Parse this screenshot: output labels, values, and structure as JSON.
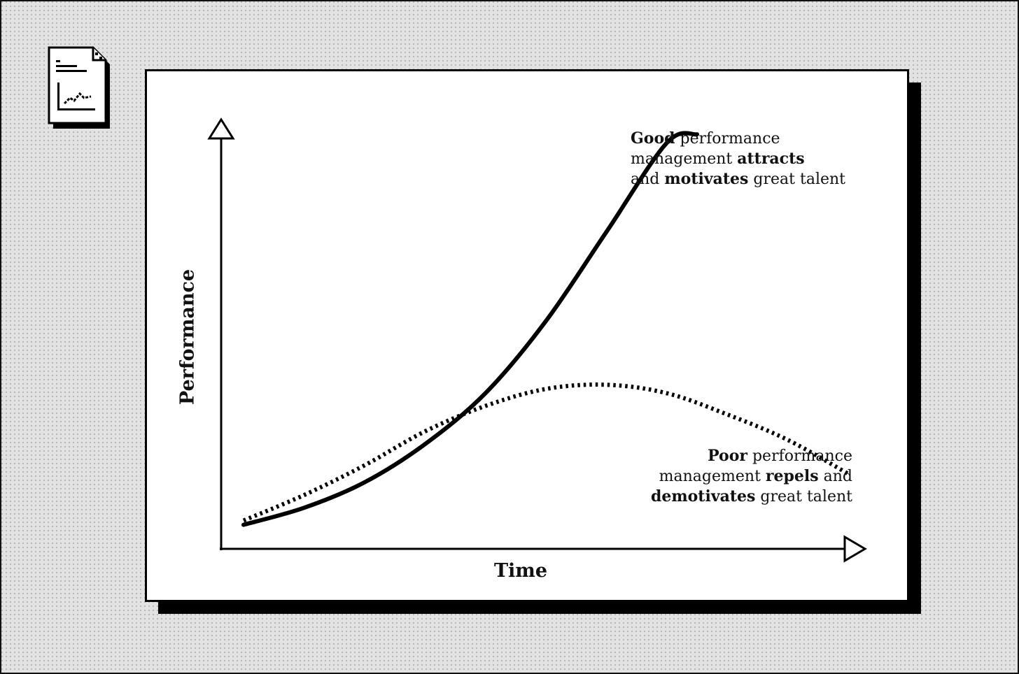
{
  "chart_data": {
    "type": "line",
    "xlabel": "Time",
    "ylabel": "Performance",
    "xlim": [
      0,
      100
    ],
    "ylim": [
      0,
      100
    ],
    "grid": false,
    "ticks": false,
    "series": [
      {
        "key": "good",
        "style": "solid",
        "color": "#000000",
        "x": [
          0,
          10,
          20,
          30,
          40,
          50,
          60,
          70,
          75
        ],
        "y": [
          6,
          10,
          16,
          25,
          37,
          54,
          75,
          96,
          98
        ]
      },
      {
        "key": "poor",
        "style": "dotted",
        "color": "#000000",
        "x": [
          0,
          10,
          20,
          30,
          40,
          50,
          60,
          70,
          80,
          90,
          100
        ],
        "y": [
          7,
          13,
          20,
          28,
          34,
          38,
          39,
          37,
          32,
          26,
          18
        ]
      }
    ],
    "annotations": {
      "good": {
        "lines": [
          [
            {
              "t": "Good",
              "b": true
            },
            {
              "t": " performance",
              "b": false
            }
          ],
          [
            {
              "t": "management ",
              "b": false
            },
            {
              "t": "attracts",
              "b": true
            }
          ],
          [
            {
              "t": "and ",
              "b": false
            },
            {
              "t": "motivates",
              "b": true
            },
            {
              "t": " great talent",
              "b": false
            }
          ]
        ]
      },
      "poor": {
        "lines": [
          [
            {
              "t": "Poor",
              "b": true
            },
            {
              "t": " performance",
              "b": false
            }
          ],
          [
            {
              "t": "management ",
              "b": false
            },
            {
              "t": "repels",
              "b": true
            },
            {
              "t": " and",
              "b": false
            }
          ],
          [
            {
              "t": "demotivates",
              "b": true
            },
            {
              "t": " great talent",
              "b": false
            }
          ]
        ]
      }
    }
  },
  "icons": {
    "document": "chart-document-icon"
  }
}
